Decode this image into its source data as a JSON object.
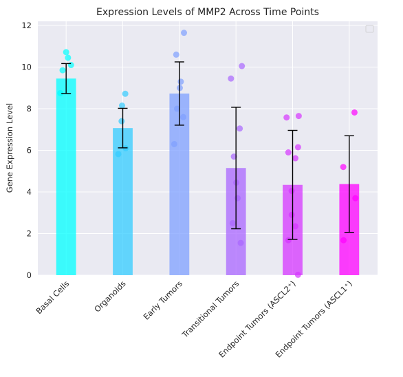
{
  "chart_data": {
    "type": "bar",
    "title": "Expression Levels of MMP2 Across Time Points",
    "xlabel": "",
    "ylabel": "Gene Expression Level",
    "ylim": [
      0,
      12.2
    ],
    "yticks": [
      0,
      2,
      4,
      6,
      8,
      10,
      12
    ],
    "grid": true,
    "legend": "top-right (empty)",
    "categories": [
      "Basal Cells",
      "Organoids",
      "Early Tumors",
      "Transitional Tumors",
      "Endpoint Tumors (ASCL2⁺)",
      "Endpoint Tumors (ASCL1⁺)"
    ],
    "values": [
      9.45,
      7.07,
      8.73,
      5.15,
      4.34,
      4.38
    ],
    "errors": [
      0.72,
      0.95,
      1.52,
      2.92,
      2.62,
      2.32
    ],
    "points": [
      [
        10.72,
        10.45,
        9.85,
        10.1,
        8.75
      ],
      [
        8.72,
        8.15,
        7.4,
        6.1,
        5.82
      ],
      [
        11.65,
        10.6,
        9.3,
        9.0,
        8.0,
        7.6,
        6.3
      ],
      [
        10.05,
        9.45,
        7.05,
        5.7,
        4.45,
        3.7,
        2.5,
        1.55
      ],
      [
        7.65,
        7.58,
        6.15,
        5.9,
        5.62,
        4.05,
        2.9,
        2.35,
        1.68,
        0.02
      ],
      [
        7.82,
        5.2,
        3.7,
        1.68
      ]
    ],
    "colors": [
      "#00FFFF",
      "#33CCFF",
      "#7FA0FF",
      "#AA66FF",
      "#D535FF",
      "#FF00FF"
    ]
  }
}
